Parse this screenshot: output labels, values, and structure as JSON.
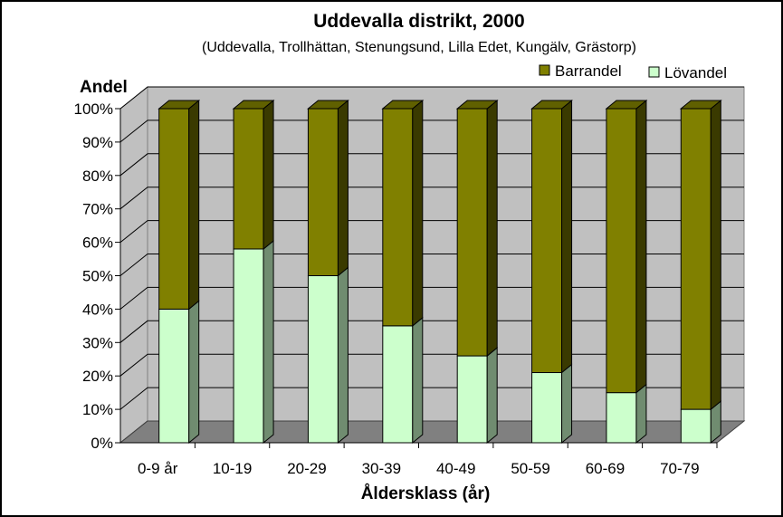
{
  "chart_data": {
    "type": "bar",
    "stacked": true,
    "percent_stacked": true,
    "three_d": true,
    "title": "Uddevalla distrikt, 2000",
    "subtitle": "(Uddevalla, Trollhättan, Stenungsund, Lilla Edet, Kungälv, Grästorp)",
    "xlabel": "Åldersklass (år)",
    "ylabel": "Andel",
    "ylim": [
      0,
      100
    ],
    "yticks": [
      "0%",
      "10%",
      "20%",
      "30%",
      "40%",
      "50%",
      "60%",
      "70%",
      "80%",
      "90%",
      "100%"
    ],
    "grid": true,
    "legend_position": "top-right",
    "categories": [
      "0-9 år",
      "10-19",
      "20-29",
      "30-39",
      "40-49",
      "50-59",
      "60-69",
      "70-79"
    ],
    "series": [
      {
        "name": "Lövandel",
        "color": "#ccffcc",
        "values": [
          40,
          58,
          50,
          35,
          26,
          21,
          15,
          10
        ]
      },
      {
        "name": "Barrandel",
        "color": "#808000",
        "values": [
          60,
          42,
          50,
          65,
          74,
          79,
          85,
          90
        ]
      }
    ],
    "legend_order": [
      "Barrandel",
      "Lövandel"
    ]
  }
}
